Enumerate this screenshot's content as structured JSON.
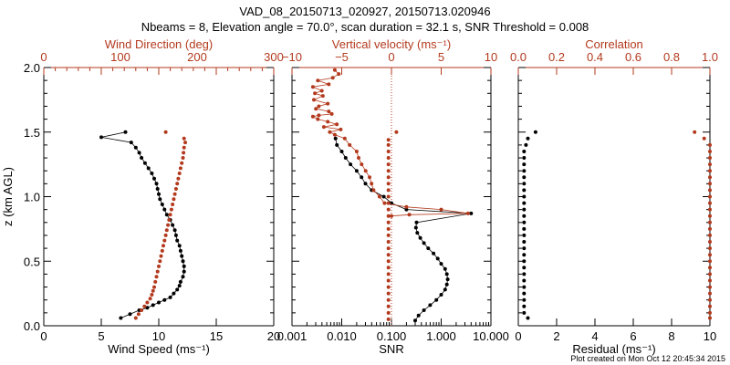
{
  "title_line1": "VAD_08_20150713_020927, 20150713.020946",
  "title_line2": "Nbeams = 8, Elevation angle = 70.0°, scan duration = 32.1 s, SNR Threshold = 0.008",
  "footer": "Plot created on Mon Oct 12 20:45:34 2015",
  "colors": {
    "primary": "#000000",
    "secondary": "#b33a1e"
  },
  "chart_data": [
    {
      "type": "scatter",
      "panel": "wind",
      "ylabel": "z (km AGL)",
      "ylim": [
        0,
        2.0
      ],
      "y_ticks": [
        "0.0",
        "0.5",
        "1.0",
        "1.5",
        "2.0"
      ],
      "xlabel": "Wind Speed (ms⁻¹)",
      "xlim": [
        0,
        20
      ],
      "x_ticks": [
        "0",
        "5",
        "10",
        "15",
        "20"
      ],
      "top_label": "Wind Direction (deg)",
      "top_lim": [
        0,
        400
      ],
      "top_ticks": [
        "0",
        "100",
        "200",
        "300"
      ],
      "series": [
        {
          "values": [
            [
              6.7,
              0.06
            ],
            [
              7.5,
              0.09
            ],
            [
              8.3,
              0.12
            ],
            [
              9.0,
              0.14
            ],
            [
              9.5,
              0.16
            ],
            [
              10.0,
              0.18
            ],
            [
              10.5,
              0.2
            ],
            [
              11.0,
              0.22
            ],
            [
              11.3,
              0.25
            ],
            [
              11.6,
              0.28
            ],
            [
              11.8,
              0.31
            ],
            [
              11.9,
              0.34
            ],
            [
              12.1,
              0.38
            ],
            [
              12.2,
              0.42
            ],
            [
              12.2,
              0.46
            ],
            [
              12.1,
              0.5
            ],
            [
              12.0,
              0.54
            ],
            [
              11.9,
              0.58
            ],
            [
              11.8,
              0.62
            ],
            [
              11.6,
              0.66
            ],
            [
              11.5,
              0.7
            ],
            [
              11.4,
              0.74
            ],
            [
              11.2,
              0.78
            ],
            [
              11.0,
              0.82
            ],
            [
              10.7,
              0.86
            ],
            [
              10.5,
              0.9
            ],
            [
              10.3,
              0.94
            ],
            [
              10.1,
              0.98
            ],
            [
              10.0,
              1.02
            ],
            [
              9.9,
              1.06
            ],
            [
              9.8,
              1.1
            ],
            [
              9.6,
              1.14
            ],
            [
              9.4,
              1.18
            ],
            [
              9.1,
              1.22
            ],
            [
              8.8,
              1.26
            ],
            [
              8.5,
              1.3
            ],
            [
              8.3,
              1.34
            ],
            [
              8.0,
              1.38
            ],
            [
              7.6,
              1.42
            ],
            [
              5.0,
              1.46
            ],
            [
              7.1,
              1.5
            ]
          ]
        },
        {
          "axis": "top",
          "values": [
            [
              160,
              0.06
            ],
            [
              165,
              0.09
            ],
            [
              170,
              0.12
            ],
            [
              175,
              0.15
            ],
            [
              180,
              0.18
            ],
            [
              185,
              0.21
            ],
            [
              188,
              0.24
            ],
            [
              190,
              0.27
            ],
            [
              192,
              0.3
            ],
            [
              194,
              0.34
            ],
            [
              196,
              0.38
            ],
            [
              198,
              0.42
            ],
            [
              200,
              0.46
            ],
            [
              202,
              0.5
            ],
            [
              204,
              0.54
            ],
            [
              206,
              0.58
            ],
            [
              208,
              0.62
            ],
            [
              210,
              0.66
            ],
            [
              212,
              0.7
            ],
            [
              214,
              0.74
            ],
            [
              216,
              0.78
            ],
            [
              218,
              0.82
            ],
            [
              220,
              0.86
            ],
            [
              222,
              0.9
            ],
            [
              224,
              0.94
            ],
            [
              226,
              0.98
            ],
            [
              228,
              1.02
            ],
            [
              230,
              1.06
            ],
            [
              232,
              1.1
            ],
            [
              234,
              1.14
            ],
            [
              236,
              1.18
            ],
            [
              238,
              1.22
            ],
            [
              240,
              1.26
            ],
            [
              242,
              1.3
            ],
            [
              243,
              1.34
            ],
            [
              244,
              1.38
            ],
            [
              246,
              1.42
            ],
            [
              244,
              1.45
            ],
            [
              212,
              1.5
            ]
          ]
        }
      ]
    },
    {
      "type": "scatter",
      "panel": "snr",
      "ylim": [
        0,
        2.0
      ],
      "xlabel": "SNR",
      "xscale": "log",
      "xlim": [
        0.001,
        10
      ],
      "x_ticks": [
        "0.001",
        "0.010",
        "0.100",
        "1.000",
        "10.000"
      ],
      "top_label": "Vertical velocity (ms⁻¹)",
      "top_lim": [
        -10,
        10
      ],
      "top_ticks": [
        "−10",
        "−5",
        "0",
        "5",
        "10"
      ],
      "series": [
        {
          "values": [
            [
              0.3,
              0.04
            ],
            [
              0.35,
              0.08
            ],
            [
              0.45,
              0.12
            ],
            [
              0.6,
              0.16
            ],
            [
              0.8,
              0.2
            ],
            [
              1.0,
              0.24
            ],
            [
              1.2,
              0.28
            ],
            [
              1.3,
              0.32
            ],
            [
              1.35,
              0.36
            ],
            [
              1.3,
              0.4
            ],
            [
              1.2,
              0.44
            ],
            [
              1.0,
              0.48
            ],
            [
              0.85,
              0.52
            ],
            [
              0.7,
              0.56
            ],
            [
              0.55,
              0.6
            ],
            [
              0.45,
              0.64
            ],
            [
              0.38,
              0.68
            ],
            [
              0.33,
              0.72
            ],
            [
              0.31,
              0.76
            ],
            [
              0.32,
              0.8
            ],
            [
              4.0,
              0.87
            ],
            [
              0.2,
              0.9
            ],
            [
              0.1,
              0.95
            ],
            [
              0.07,
              1.0
            ],
            [
              0.04,
              1.05
            ],
            [
              0.03,
              1.1
            ],
            [
              0.025,
              1.15
            ],
            [
              0.02,
              1.2
            ],
            [
              0.015,
              1.25
            ],
            [
              0.012,
              1.3
            ],
            [
              0.01,
              1.35
            ],
            [
              0.008,
              1.4
            ],
            [
              0.0075,
              1.45
            ]
          ]
        },
        {
          "axis": "top",
          "values": [
            [
              -0.3,
              0.05
            ],
            [
              -0.3,
              0.1
            ],
            [
              -0.3,
              0.15
            ],
            [
              -0.3,
              0.2
            ],
            [
              -0.3,
              0.25
            ],
            [
              -0.3,
              0.3
            ],
            [
              -0.3,
              0.35
            ],
            [
              -0.3,
              0.4
            ],
            [
              -0.3,
              0.45
            ],
            [
              -0.3,
              0.5
            ],
            [
              -0.3,
              0.55
            ],
            [
              -0.3,
              0.6
            ],
            [
              -0.3,
              0.65
            ],
            [
              -0.3,
              0.7
            ],
            [
              -0.3,
              0.75
            ],
            [
              -0.3,
              0.8
            ],
            [
              -0.3,
              0.85
            ],
            [
              -0.3,
              0.9
            ],
            [
              -0.3,
              0.95
            ],
            [
              -0.3,
              1.0
            ],
            [
              -0.3,
              1.05
            ],
            [
              -0.3,
              1.1
            ],
            [
              -0.3,
              1.15
            ],
            [
              -0.3,
              1.2
            ],
            [
              -0.3,
              1.25
            ],
            [
              -0.3,
              1.3
            ],
            [
              -0.3,
              1.35
            ],
            [
              -0.3,
              1.4
            ],
            [
              -0.3,
              1.44
            ],
            [
              0.5,
              1.5
            ]
          ]
        },
        {
          "axis": "top",
          "values": [
            [
              -5.7,
              1.98
            ],
            [
              -5.3,
              1.95
            ],
            [
              -5.9,
              1.92
            ],
            [
              -7.4,
              1.9
            ],
            [
              -6.3,
              1.87
            ],
            [
              -7.9,
              1.85
            ],
            [
              -7.0,
              1.82
            ],
            [
              -7.7,
              1.8
            ],
            [
              -6.9,
              1.78
            ],
            [
              -7.8,
              1.75
            ],
            [
              -6.4,
              1.72
            ],
            [
              -7.3,
              1.7
            ],
            [
              -7.6,
              1.68
            ],
            [
              -6.3,
              1.66
            ],
            [
              -6.0,
              1.64
            ],
            [
              -7.3,
              1.63
            ],
            [
              -7.9,
              1.62
            ],
            [
              -7.4,
              1.6
            ],
            [
              -6.4,
              1.58
            ],
            [
              -5.5,
              1.56
            ],
            [
              -6.8,
              1.54
            ],
            [
              -5.1,
              1.52
            ],
            [
              -6.2,
              1.5
            ],
            [
              -5.7,
              1.48
            ],
            [
              -4.7,
              1.45
            ],
            [
              -4.2,
              1.4
            ],
            [
              -3.5,
              1.35
            ],
            [
              -3.3,
              1.3
            ],
            [
              -3.0,
              1.25
            ],
            [
              -2.6,
              1.2
            ],
            [
              -2.2,
              1.15
            ],
            [
              -2.0,
              1.1
            ],
            [
              -1.8,
              1.05
            ],
            [
              -1.2,
              1.0
            ],
            [
              -0.7,
              0.95
            ],
            [
              1.5,
              0.92
            ],
            [
              5.0,
              0.9
            ],
            [
              7.7,
              0.87
            ],
            [
              1.8,
              0.86
            ],
            [
              0.0,
              0.85
            ]
          ]
        }
      ]
    },
    {
      "type": "scatter",
      "panel": "residual",
      "ylim": [
        0,
        2.0
      ],
      "xlabel": "Residual (ms⁻¹)",
      "xlim": [
        0,
        10
      ],
      "x_ticks": [
        "0",
        "2",
        "4",
        "6",
        "8",
        "10"
      ],
      "top_label": "Correlation",
      "top_lim": [
        0,
        1.0
      ],
      "top_ticks": [
        "0.0",
        "0.2",
        "0.4",
        "0.6",
        "0.8",
        "1.0"
      ],
      "series": [
        {
          "values": [
            [
              0.5,
              0.06
            ],
            [
              0.3,
              0.1
            ],
            [
              0.3,
              0.15
            ],
            [
              0.3,
              0.2
            ],
            [
              0.3,
              0.25
            ],
            [
              0.3,
              0.3
            ],
            [
              0.3,
              0.35
            ],
            [
              0.3,
              0.4
            ],
            [
              0.3,
              0.45
            ],
            [
              0.3,
              0.5
            ],
            [
              0.3,
              0.55
            ],
            [
              0.3,
              0.6
            ],
            [
              0.3,
              0.65
            ],
            [
              0.3,
              0.7
            ],
            [
              0.3,
              0.75
            ],
            [
              0.3,
              0.8
            ],
            [
              0.3,
              0.85
            ],
            [
              0.3,
              0.9
            ],
            [
              0.3,
              0.95
            ],
            [
              0.3,
              1.0
            ],
            [
              0.3,
              1.05
            ],
            [
              0.3,
              1.1
            ],
            [
              0.3,
              1.15
            ],
            [
              0.3,
              1.2
            ],
            [
              0.3,
              1.25
            ],
            [
              0.3,
              1.3
            ],
            [
              0.3,
              1.35
            ],
            [
              0.4,
              1.4
            ],
            [
              0.5,
              1.45
            ],
            [
              0.9,
              1.5
            ]
          ]
        },
        {
          "axis": "top",
          "values": [
            [
              1.0,
              0.06
            ],
            [
              1.0,
              0.1
            ],
            [
              1.0,
              0.15
            ],
            [
              1.0,
              0.2
            ],
            [
              1.0,
              0.25
            ],
            [
              1.0,
              0.3
            ],
            [
              1.0,
              0.35
            ],
            [
              1.0,
              0.4
            ],
            [
              1.0,
              0.45
            ],
            [
              1.0,
              0.5
            ],
            [
              1.0,
              0.55
            ],
            [
              1.0,
              0.6
            ],
            [
              1.0,
              0.65
            ],
            [
              1.0,
              0.7
            ],
            [
              1.0,
              0.75
            ],
            [
              1.0,
              0.8
            ],
            [
              1.0,
              0.85
            ],
            [
              1.0,
              0.9
            ],
            [
              1.0,
              0.95
            ],
            [
              1.0,
              1.0
            ],
            [
              1.0,
              1.05
            ],
            [
              1.0,
              1.1
            ],
            [
              1.0,
              1.15
            ],
            [
              1.0,
              1.2
            ],
            [
              1.0,
              1.25
            ],
            [
              1.0,
              1.3
            ],
            [
              1.0,
              1.35
            ],
            [
              1.0,
              1.4
            ],
            [
              0.97,
              1.45
            ],
            [
              0.92,
              1.5
            ]
          ]
        }
      ]
    }
  ]
}
